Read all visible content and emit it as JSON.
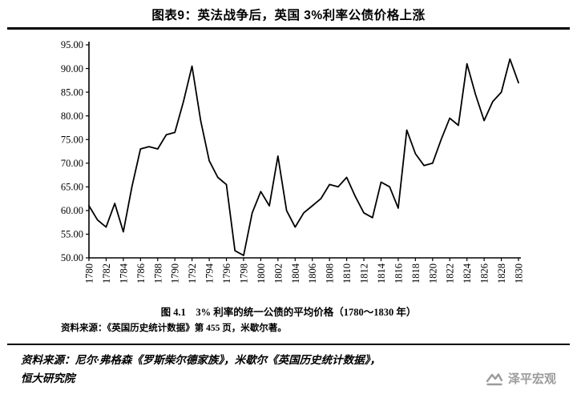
{
  "header": {
    "title": "图表9：英法战争后，英国 3%利率公债价格上涨"
  },
  "chart_data": {
    "type": "line",
    "caption": "图 4.1　3% 利率的统一公债的平均价格（1780～1830 年）",
    "caption_source": "资料来源：《英国历史统计数据》第 455 页，米歇尔著。",
    "xlabel": "",
    "ylabel": "",
    "ylim": [
      50,
      95
    ],
    "ytick_step": 5,
    "xtick_step": 2,
    "grid": false,
    "legend": null,
    "line_color": "#000000",
    "x": [
      1780,
      1781,
      1782,
      1783,
      1784,
      1785,
      1786,
      1787,
      1788,
      1789,
      1790,
      1791,
      1792,
      1793,
      1794,
      1795,
      1796,
      1797,
      1798,
      1799,
      1800,
      1801,
      1802,
      1803,
      1804,
      1805,
      1806,
      1807,
      1808,
      1809,
      1810,
      1811,
      1812,
      1813,
      1814,
      1815,
      1816,
      1817,
      1818,
      1819,
      1820,
      1821,
      1822,
      1823,
      1824,
      1825,
      1826,
      1827,
      1828,
      1829,
      1830
    ],
    "values": [
      61.0,
      58.0,
      56.5,
      61.5,
      55.5,
      65.0,
      73.0,
      73.5,
      73.0,
      76.0,
      76.5,
      83.0,
      90.5,
      79.0,
      70.5,
      67.0,
      65.5,
      51.5,
      50.5,
      59.5,
      64.0,
      61.0,
      71.5,
      60.0,
      56.5,
      59.5,
      61.0,
      62.5,
      65.5,
      65.0,
      67.0,
      63.0,
      59.5,
      58.5,
      66.0,
      65.0,
      60.5,
      77.0,
      72.0,
      69.5,
      70.0,
      75.0,
      79.5,
      78.0,
      91.0,
      84.5,
      79.0,
      83.0,
      85.0,
      92.0,
      87.0
    ]
  },
  "footer": {
    "source_line1": "资料来源：尼尔·弗格森《罗斯柴尔德家族》，米歇尔《英国历史统计数据》，",
    "source_line2": "恒大研究院",
    "watermark_text": "泽平宏观",
    "watermark_color": "#9b9b9b"
  }
}
